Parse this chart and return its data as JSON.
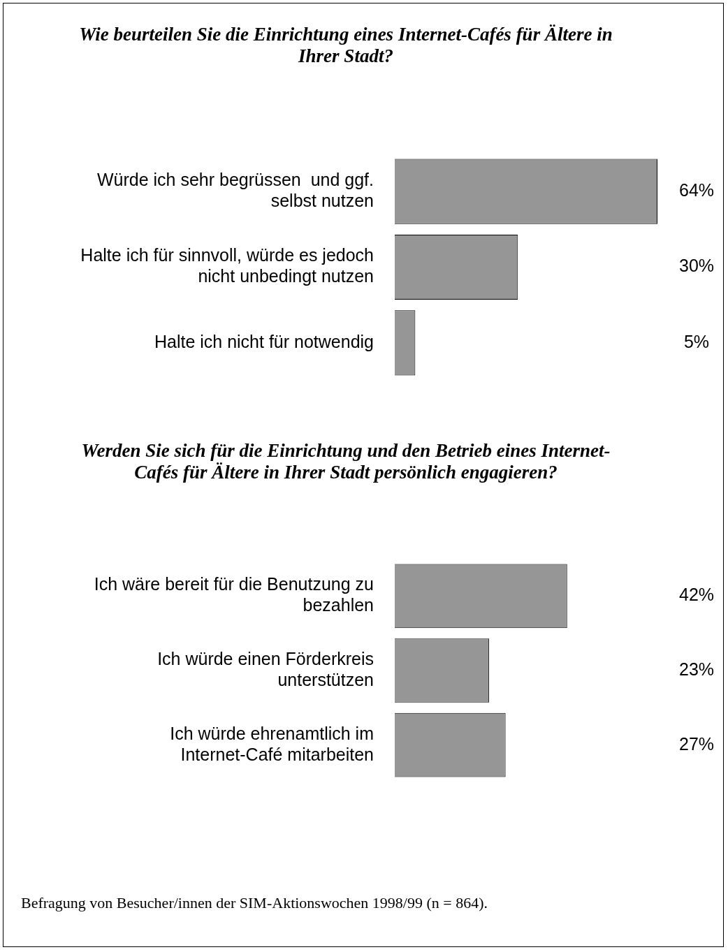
{
  "chart_data": [
    {
      "type": "bar",
      "orientation": "horizontal",
      "title": "Wie beurteilen Sie die Einrichtung eines Internet-Cafés für Ältere in Ihrer Stadt?",
      "categories": [
        "Würde ich sehr begrüssen  und ggf. selbst nutzen",
        "Halte ich für sinnvoll, würde es jedoch nicht unbedingt nutzen",
        "Halte ich nicht für notwendig"
      ],
      "values": [
        64,
        30,
        5
      ],
      "color": "#969696",
      "value_labels": [
        "64%",
        "30%",
        "5%"
      ],
      "xlim": [
        0,
        80
      ],
      "legend": false,
      "tick_labels": "y"
    },
    {
      "type": "bar",
      "orientation": "horizontal",
      "title": "Werden Sie sich für die Einrichtung und den Betrieb eines Internet-Cafés für Ältere in Ihrer Stadt persönlich engagieren?",
      "categories": [
        "Ich wäre bereit für die Benutzung zu bezahlen",
        "Ich würde einen Förderkreis unterstützen",
        "Ich würde ehrenamtlich im Internet-Café mitarbeiten"
      ],
      "values": [
        42,
        23,
        27
      ],
      "color": "#969696",
      "value_labels": [
        "42%",
        "23%",
        "27%"
      ],
      "xlim": [
        0,
        80
      ],
      "legend": false,
      "tick_labels": "y",
      "annotations": [
        "Befragung von Besucher/innen der SIM-Aktionswochen 1998/99 (n = 864)."
      ]
    }
  ]
}
